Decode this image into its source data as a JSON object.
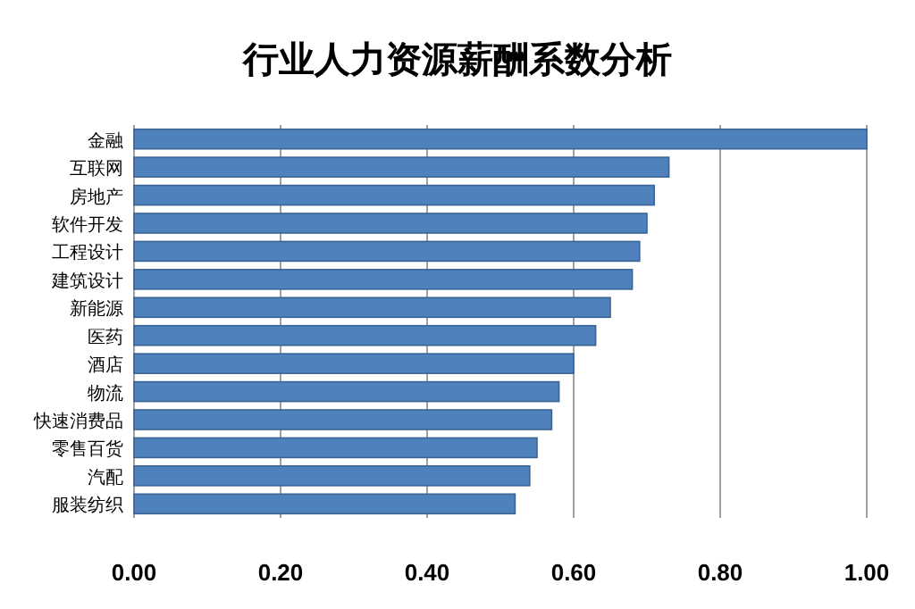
{
  "chart_data": {
    "type": "bar",
    "orientation": "horizontal",
    "title": "行业人力资源薪酬系数分析",
    "categories": [
      "金融",
      "互联网",
      "房地产",
      "软件开发",
      "工程设计",
      "建筑设计",
      "新能源",
      "医药",
      "酒店",
      "物流",
      "快速消费品",
      "零售百货",
      "汽配",
      "服装纺织"
    ],
    "values": [
      1.0,
      0.73,
      0.71,
      0.7,
      0.69,
      0.68,
      0.65,
      0.63,
      0.6,
      0.58,
      0.57,
      0.55,
      0.54,
      0.52
    ],
    "color": "#4f81bd",
    "xlim": [
      0,
      1
    ],
    "xticks": [
      {
        "value": 0,
        "label": "0.00"
      },
      {
        "value": 0.2,
        "label": "0.20"
      },
      {
        "value": 0.4,
        "label": "0.40"
      },
      {
        "value": 0.6,
        "label": "0.60"
      },
      {
        "value": 0.8,
        "label": "0.80"
      },
      {
        "value": 1,
        "label": "1.00"
      }
    ],
    "grid": "x"
  }
}
